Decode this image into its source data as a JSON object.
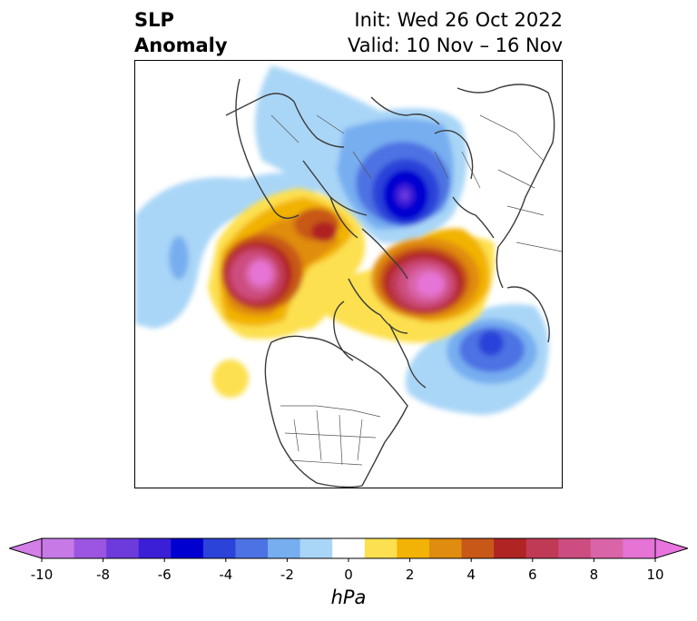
{
  "header": {
    "title_line1": "SLP",
    "title_line2": "Anomaly",
    "init": "Init: Wed 26 Oct 2022",
    "valid": "Valid: 10 Nov – 16 Nov"
  },
  "colorbar": {
    "units": "hPa",
    "ticks": [
      "-10",
      "-8",
      "-6",
      "-4",
      "-2",
      "0",
      "2",
      "4",
      "6",
      "8",
      "10"
    ],
    "extend": "both",
    "colors": [
      "#c77ae6",
      "#9b55e0",
      "#6d3bdb",
      "#3a1fd7",
      "#0000d0",
      "#2b43d9",
      "#4d72e3",
      "#77aef0",
      "#a9d6f7",
      "#ffffff",
      "#fde050",
      "#f2b306",
      "#e08c10",
      "#c85818",
      "#b02424",
      "#c03a55",
      "#cd4d80",
      "#d964a8",
      "#e673d6"
    ],
    "under_color": "#d47ee8",
    "over_color": "#e874dd"
  },
  "map": {
    "projection": "north-polar-stereographic",
    "features": [
      "slp-anomaly-shading",
      "coastlines",
      "country-borders",
      "us-state-borders"
    ]
  }
}
